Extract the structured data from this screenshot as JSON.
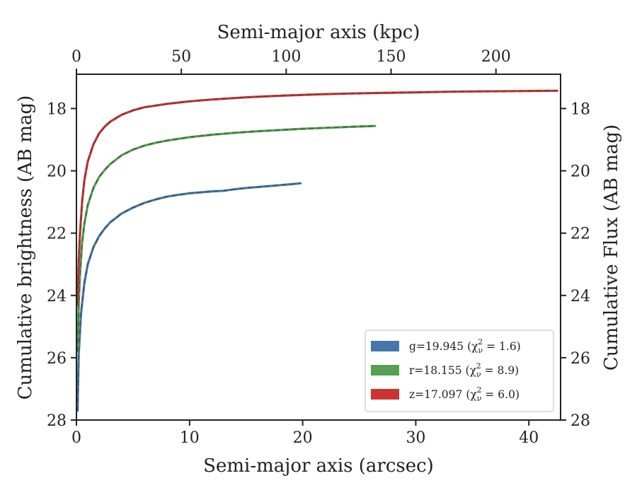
{
  "chart_data": {
    "type": "line",
    "xlabel": "Semi-major axis (arcsec)",
    "ylabel": "Cumulative brightness (AB mag)",
    "x2label": "Semi-major axis (kpc)",
    "y2label": "Cumulative Flux (AB mag)",
    "xlim": [
      0,
      42.8
    ],
    "ylim": [
      28,
      16.9
    ],
    "x2lim": [
      0,
      230.8
    ],
    "y_inverted": true,
    "xticks": [
      "0",
      "10",
      "20",
      "30",
      "40"
    ],
    "yticks": [
      "18",
      "20",
      "22",
      "24",
      "26",
      "28"
    ],
    "x2ticks": [
      "0",
      "50",
      "100",
      "150",
      "200"
    ],
    "y2ticks": [
      "18",
      "20",
      "22",
      "24",
      "26",
      "28"
    ],
    "grid": false,
    "legend_position": "bottom-right",
    "series": [
      {
        "name": "g",
        "legend_label": "g=19.945 (χ",
        "legend_sub": "ν",
        "legend_sup": "2",
        "legend_value": " = 1.6)",
        "color": "#4477aa",
        "x": [
          0.1,
          0.2,
          0.4,
          0.7,
          1.0,
          1.5,
          2.0,
          2.5,
          3.0,
          4.0,
          5.0,
          6.0,
          7.0,
          8.0,
          9.0,
          10.0,
          11.0,
          12.0,
          13.0,
          14.0,
          15.0,
          16.0,
          17.0,
          18.0,
          19.0,
          19.8
        ],
        "y": [
          27.7,
          25.9,
          24.6,
          23.6,
          23.0,
          22.45,
          22.1,
          21.85,
          21.65,
          21.37,
          21.18,
          21.03,
          20.92,
          20.83,
          20.77,
          20.72,
          20.69,
          20.66,
          20.64,
          20.59,
          20.55,
          20.52,
          20.49,
          20.46,
          20.43,
          20.4
        ]
      },
      {
        "name": "r",
        "legend_label": "r=18.155 (χ",
        "legend_sub": "ν",
        "legend_sup": "2",
        "legend_value": " = 8.9)",
        "color": "#55a051",
        "x": [
          0.1,
          0.2,
          0.3,
          0.5,
          0.7,
          1.0,
          1.5,
          2.0,
          2.5,
          3.0,
          4.0,
          5.0,
          6.0,
          7.0,
          8.0,
          10.0,
          12.0,
          14.0,
          16.0,
          18.0,
          20.0,
          22.0,
          24.0,
          26.4
        ],
        "y": [
          25.8,
          24.3,
          23.4,
          22.3,
          21.7,
          21.1,
          20.55,
          20.2,
          19.97,
          19.78,
          19.5,
          19.32,
          19.19,
          19.1,
          19.03,
          18.92,
          18.84,
          18.78,
          18.73,
          18.69,
          18.65,
          18.62,
          18.59,
          18.56
        ]
      },
      {
        "name": "z",
        "legend_label": "z=17.097 (χ",
        "legend_sub": "ν",
        "legend_sup": "2",
        "legend_value": " = 6.0)",
        "color": "#cc3333",
        "x": [
          0.1,
          0.2,
          0.3,
          0.5,
          0.7,
          1.0,
          1.5,
          2.0,
          2.5,
          3.0,
          4.0,
          5.0,
          6.0,
          8.0,
          10.0,
          12.0,
          15.0,
          18.0,
          21.0,
          24.0,
          27.0,
          30.0,
          33.0,
          36.0,
          39.0,
          42.5
        ],
        "y": [
          24.3,
          22.9,
          22.1,
          21.0,
          20.3,
          19.7,
          19.15,
          18.8,
          18.58,
          18.42,
          18.2,
          18.06,
          17.96,
          17.85,
          17.77,
          17.71,
          17.64,
          17.59,
          17.55,
          17.52,
          17.5,
          17.48,
          17.46,
          17.45,
          17.44,
          17.43
        ]
      }
    ]
  }
}
